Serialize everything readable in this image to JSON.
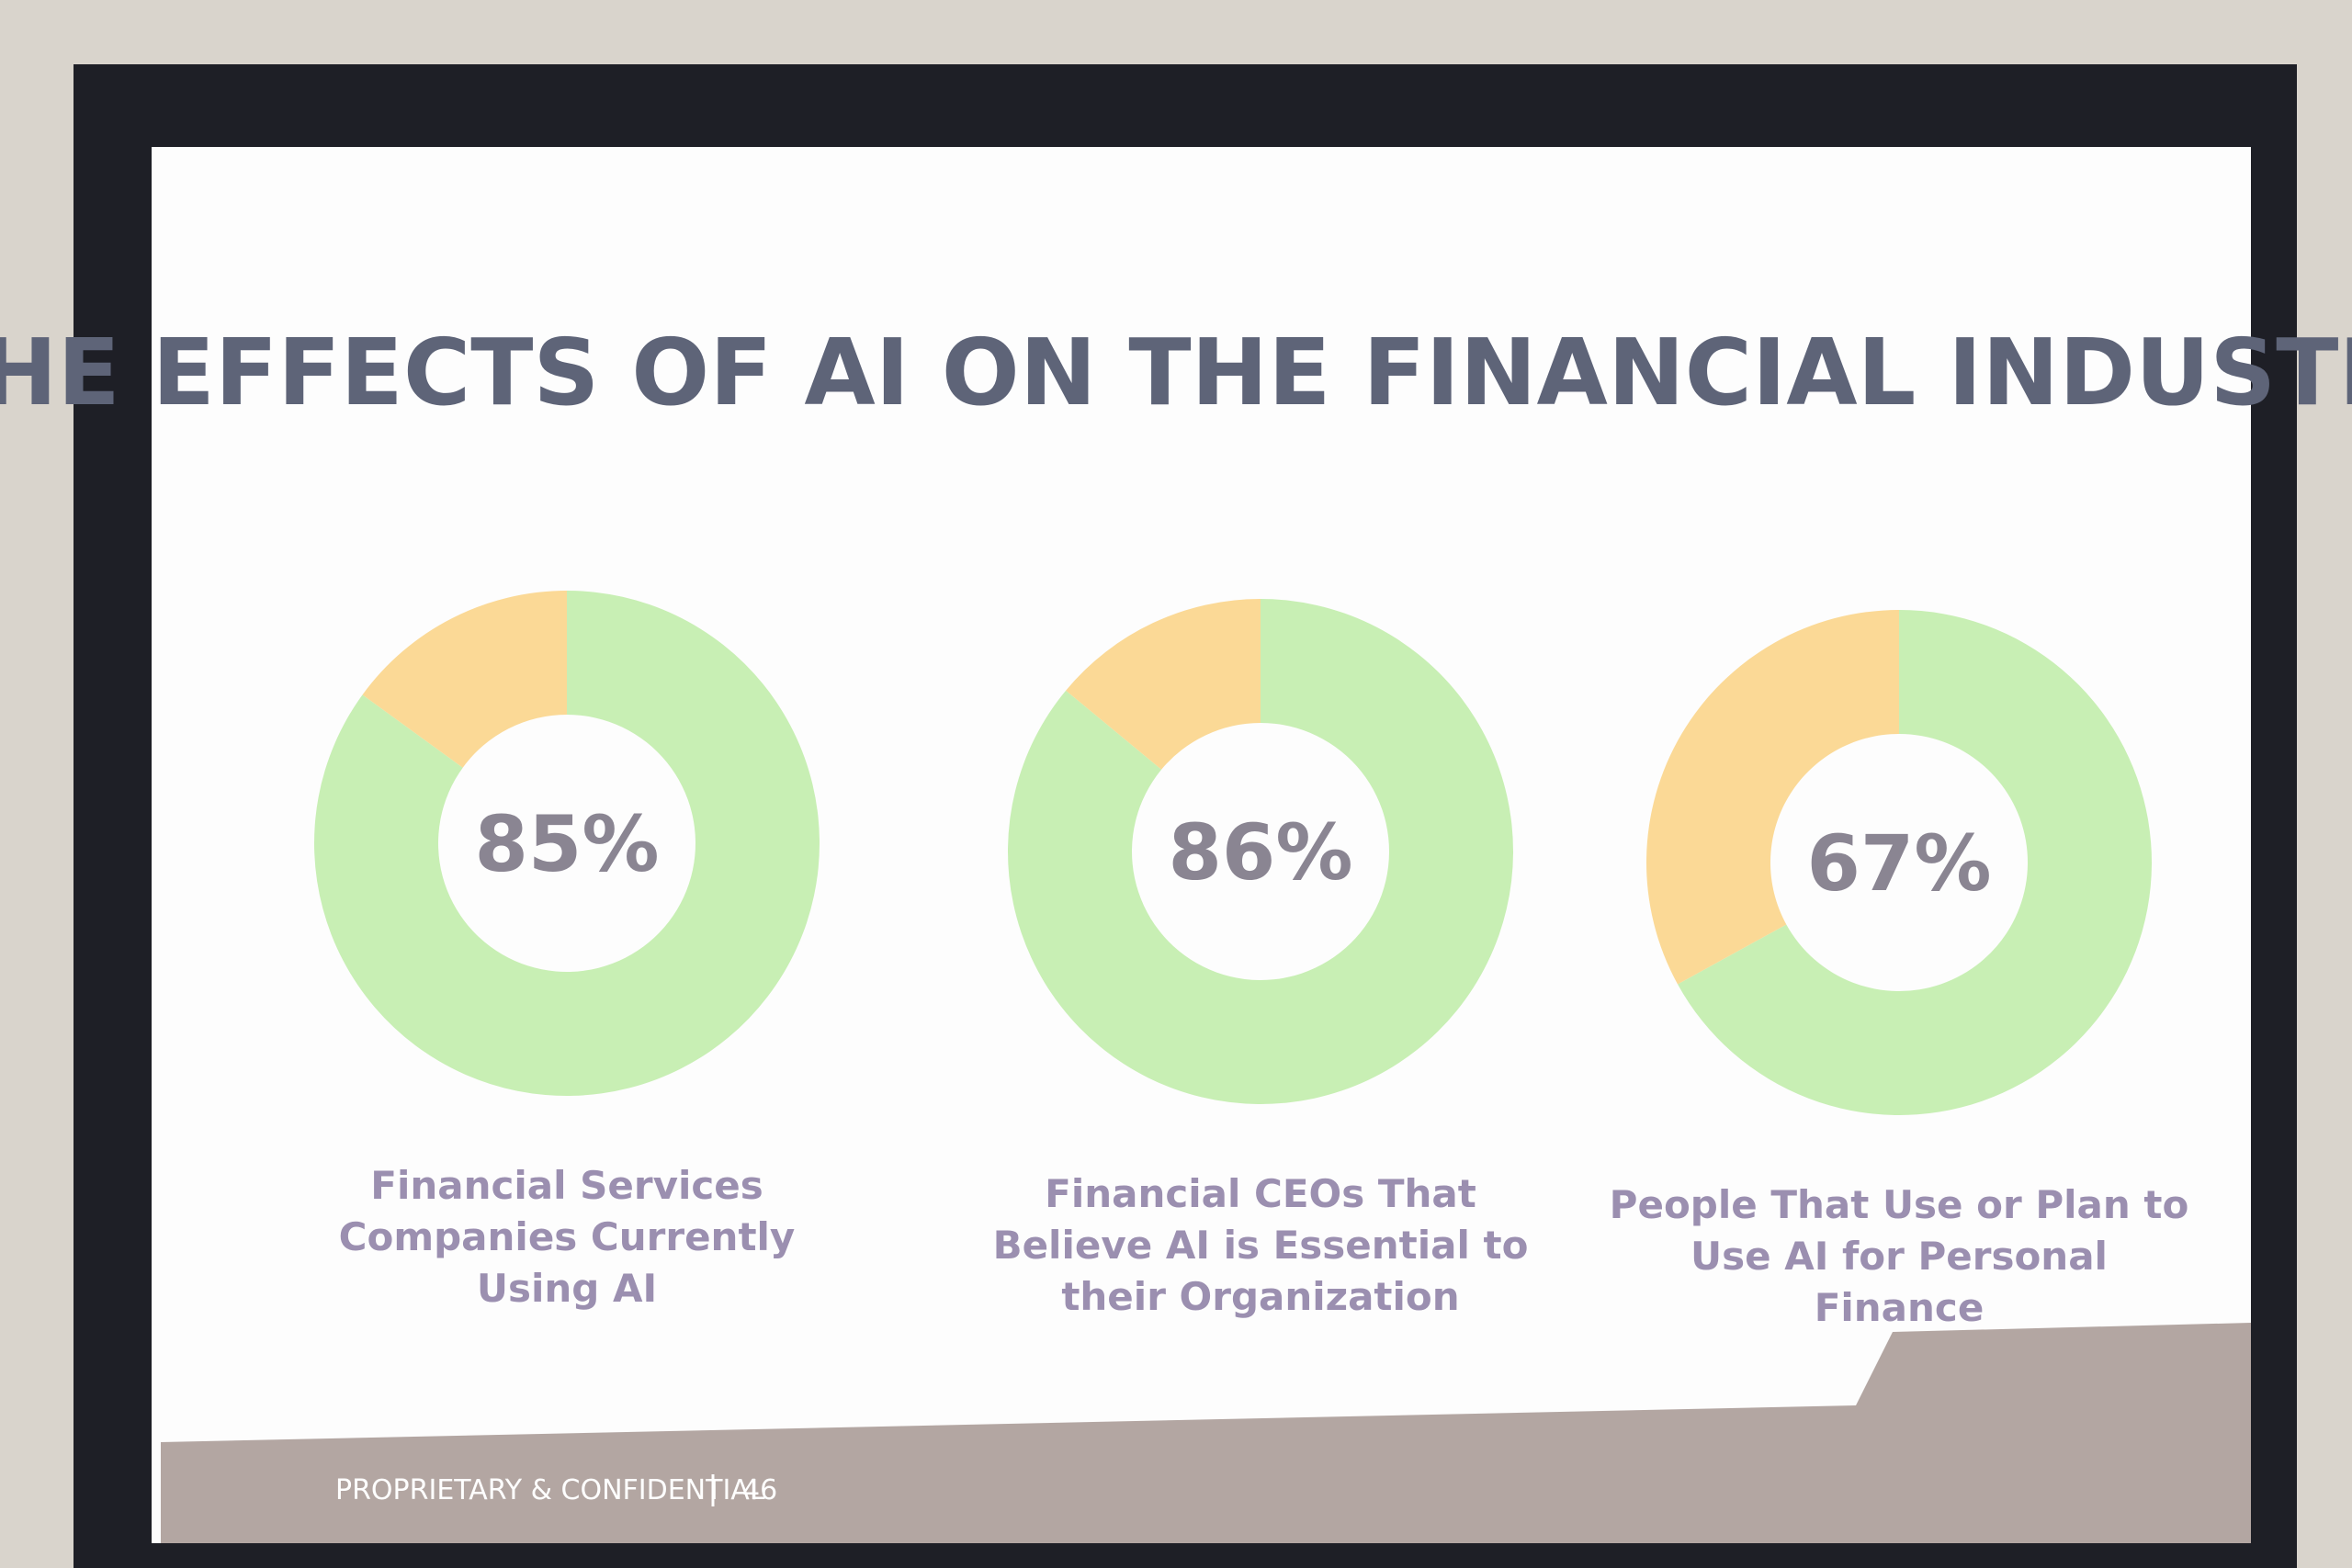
{
  "title": "THE EFFECTS OF AI ON THE FINANCIAL INDUSTRY",
  "chart_data": [
    {
      "type": "donut",
      "title": "Financial Services Companies Currently Using AI",
      "values": [
        85,
        15
      ],
      "value_labels": [
        "85%",
        null
      ],
      "colors": [
        "#c8efb4",
        "#fbd996"
      ]
    },
    {
      "type": "donut",
      "title": "Financial CEOs That Believe AI is Essential to their Organization",
      "values": [
        86,
        14
      ],
      "value_labels": [
        "86%",
        null
      ],
      "colors": [
        "#c8efb4",
        "#fbd996"
      ]
    },
    {
      "type": "donut",
      "title": "People That Use or Plan to Use AI for Personal Finance",
      "values": [
        67,
        33
      ],
      "value_labels": [
        "67%",
        null
      ],
      "colors": [
        "#c8efb4",
        "#fbd996"
      ]
    }
  ],
  "footer": {
    "text": "PROPRIETARY & CONFIDENTIAL",
    "page": 46
  }
}
